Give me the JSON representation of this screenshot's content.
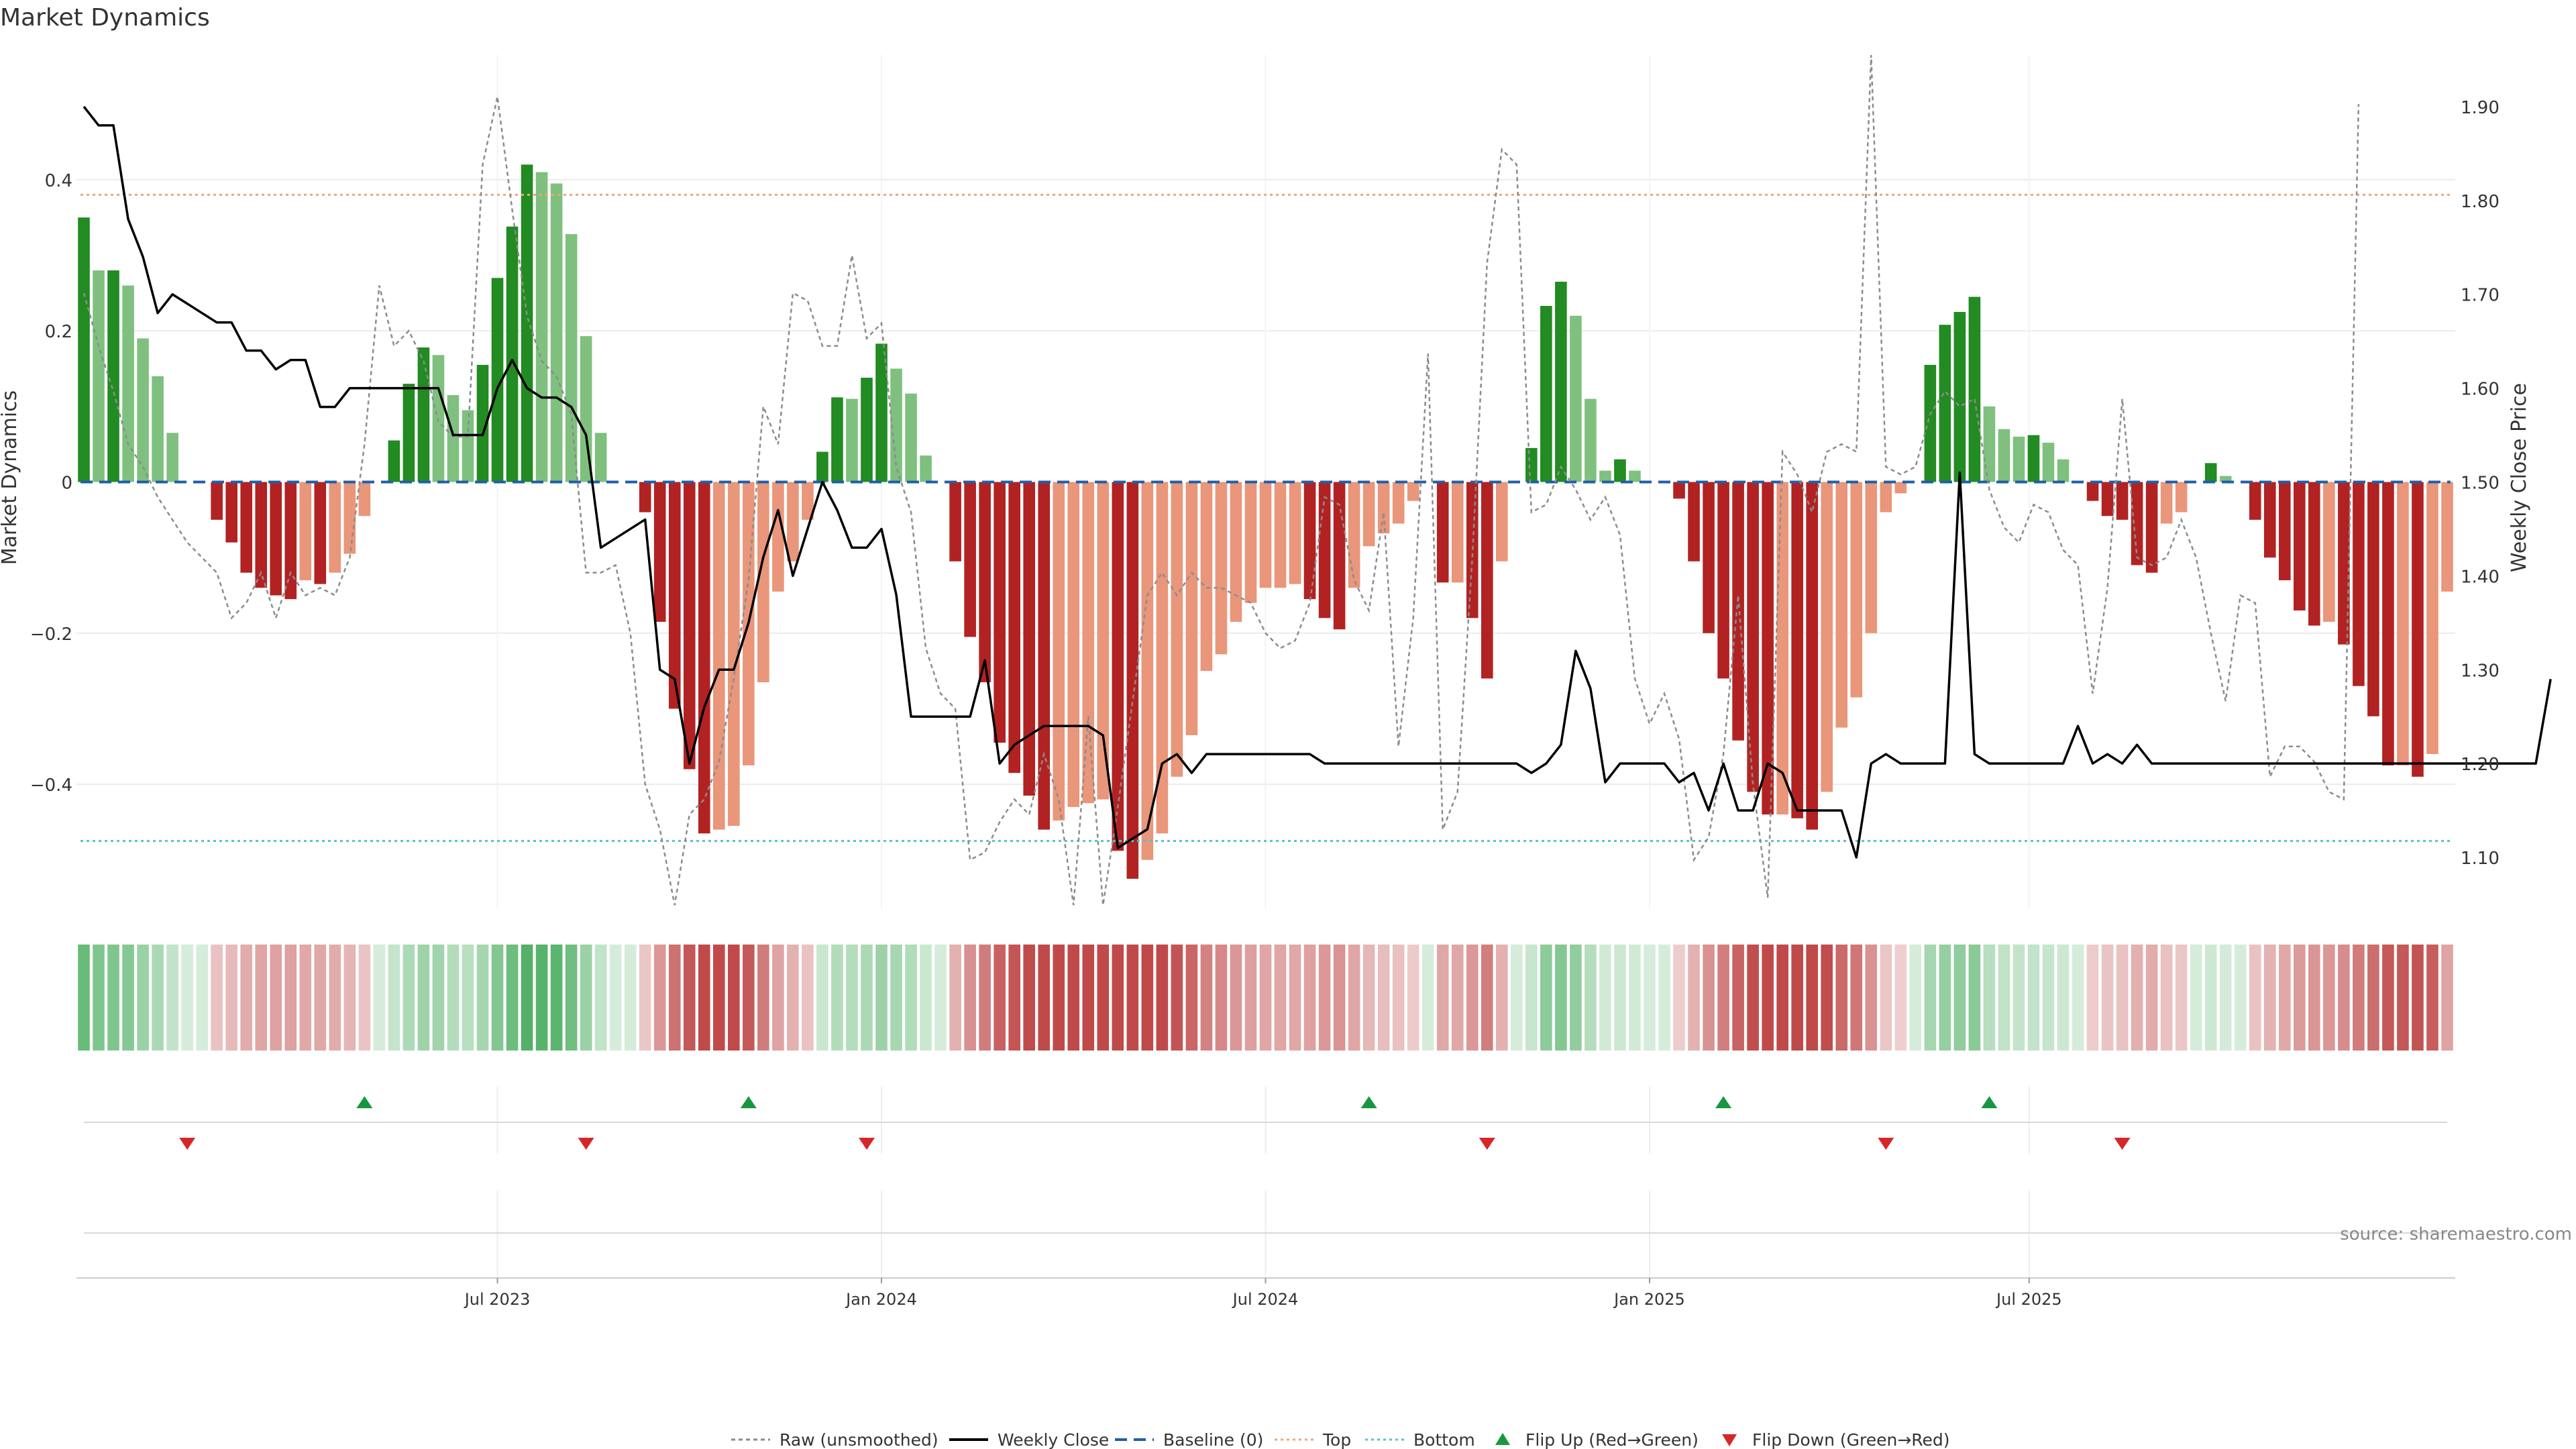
{
  "chart_data": {
    "type": "bar",
    "title": "Market Dynamics",
    "ylabel_left": "Market Dynamics",
    "ylabel_right": "Weekly Close Price",
    "ylim_left": [
      -0.565,
      0.565
    ],
    "ylim_right": [
      1.045,
      1.955
    ],
    "yticks_left": [
      {
        "v": 0.4,
        "label": "0.4"
      },
      {
        "v": 0.2,
        "label": "0.2"
      },
      {
        "v": 0,
        "label": "0"
      },
      {
        "v": -0.2,
        "label": "−0.2"
      },
      {
        "v": -0.4,
        "label": "−0.4"
      }
    ],
    "yticks_right": [
      {
        "v": 1.9,
        "label": "1.90"
      },
      {
        "v": 1.8,
        "label": "1.80"
      },
      {
        "v": 1.7,
        "label": "1.70"
      },
      {
        "v": 1.6,
        "label": "1.60"
      },
      {
        "v": 1.5,
        "label": "1.50"
      },
      {
        "v": 1.4,
        "label": "1.40"
      },
      {
        "v": 1.3,
        "label": "1.30"
      },
      {
        "v": 1.2,
        "label": "1.20"
      },
      {
        "v": 1.1,
        "label": "1.10"
      }
    ],
    "x_ticks": [
      {
        "label": "Jul 2023",
        "week": 28
      },
      {
        "label": "Jan 2024",
        "week": 54
      },
      {
        "label": "Jul 2024",
        "week": 80
      },
      {
        "label": "Jan 2025",
        "week": 106
      },
      {
        "label": "Jul 2025",
        "week": 131.7
      }
    ],
    "grid": true,
    "legend_position": "bottom-center",
    "reference_lines": {
      "top": 0.38,
      "bottom": -0.475,
      "baseline": 0
    },
    "series": [
      {
        "name": "Market Dynamics (smoothed)",
        "values": [
          0.35,
          0.28,
          0.28,
          0.26,
          0.19,
          0.14,
          0.065,
          0,
          0,
          -0.05,
          -0.08,
          -0.12,
          -0.14,
          -0.15,
          -0.155,
          -0.13,
          -0.135,
          -0.12,
          -0.095,
          -0.045,
          0,
          0.055,
          0.13,
          0.178,
          0.168,
          0.115,
          0.095,
          0.155,
          0.27,
          0.338,
          0.42,
          0.41,
          0.395,
          0.328,
          0.193,
          0.065,
          0,
          0,
          -0.04,
          -0.185,
          -0.3,
          -0.38,
          -0.465,
          -0.46,
          -0.455,
          -0.375,
          -0.265,
          -0.145,
          -0.105,
          -0.05,
          0.04,
          0.112,
          0.11,
          0.138,
          0.183,
          0.15,
          0.117,
          0.035,
          0,
          -0.105,
          -0.205,
          -0.265,
          -0.345,
          -0.385,
          -0.415,
          -0.46,
          -0.448,
          -0.43,
          -0.425,
          -0.42,
          -0.488,
          -0.525,
          -0.5,
          -0.465,
          -0.39,
          -0.335,
          -0.25,
          -0.228,
          -0.185,
          -0.16,
          -0.14,
          -0.14,
          -0.135,
          -0.155,
          -0.18,
          -0.195,
          -0.14,
          -0.085,
          -0.068,
          -0.055,
          -0.025,
          0,
          -0.133,
          -0.133,
          -0.18,
          -0.26,
          -0.105,
          0,
          0.045,
          0.233,
          0.265,
          0.22,
          0.11,
          0.015,
          0.03,
          0.015,
          0,
          0,
          -0.022,
          -0.105,
          -0.2,
          -0.26,
          -0.342,
          -0.41,
          -0.44,
          -0.44,
          -0.445,
          -0.46,
          -0.41,
          -0.325,
          -0.285,
          -0.2,
          -0.04,
          -0.015,
          0,
          0.155,
          0.208,
          0.225,
          0.245,
          0.1,
          0.07,
          0.06,
          0.062,
          0.052,
          0.03,
          0,
          -0.025,
          -0.045,
          -0.05,
          -0.11,
          -0.12,
          -0.055,
          -0.04,
          0,
          0.025,
          0.008,
          0,
          -0.05,
          -0.1,
          -0.13,
          -0.17,
          -0.19,
          -0.185,
          -0.215,
          -0.27,
          -0.31,
          -0.375,
          -0.375,
          -0.39,
          -0.36,
          -0.145
        ]
      },
      {
        "name": "Raw (unsmoothed)",
        "values": [
          0.25,
          0.18,
          0.12,
          0.05,
          0.02,
          -0.02,
          -0.05,
          -0.08,
          -0.1,
          -0.12,
          -0.18,
          -0.16,
          -0.12,
          -0.18,
          -0.12,
          -0.15,
          -0.14,
          -0.15,
          -0.1,
          0.05,
          0.26,
          0.18,
          0.2,
          0.16,
          0.08,
          0.06,
          0.06,
          0.42,
          0.51,
          0.36,
          0.22,
          0.16,
          0.14,
          0.09,
          -0.12,
          -0.12,
          -0.11,
          -0.2,
          -0.4,
          -0.46,
          -0.56,
          -0.44,
          -0.42,
          -0.37,
          -0.26,
          -0.13,
          0.1,
          0.05,
          0.25,
          0.24,
          0.18,
          0.18,
          0.3,
          0.19,
          0.21,
          0.02,
          -0.04,
          -0.22,
          -0.28,
          -0.3,
          -0.5,
          -0.49,
          -0.45,
          -0.42,
          -0.44,
          -0.36,
          -0.42,
          -0.56,
          -0.31,
          -0.56,
          -0.43,
          -0.29,
          -0.15,
          -0.12,
          -0.15,
          -0.12,
          -0.14,
          -0.14,
          -0.15,
          -0.16,
          -0.2,
          -0.22,
          -0.21,
          -0.16,
          -0.02,
          -0.03,
          -0.13,
          -0.17,
          -0.04,
          -0.35,
          -0.18,
          0.17,
          -0.46,
          -0.41,
          -0.1,
          0.29,
          0.44,
          0.42,
          -0.04,
          -0.03,
          0.02,
          -0.01,
          -0.05,
          -0.02,
          -0.07,
          -0.26,
          -0.32,
          -0.28,
          -0.34,
          -0.5,
          -0.47,
          -0.36,
          -0.15,
          -0.4,
          -0.55,
          0.04,
          0.01,
          -0.04,
          0.04,
          0.05,
          0.04,
          0.57,
          0.02,
          0.01,
          0.02,
          0.09,
          0.12,
          0.1,
          0.11,
          -0.01,
          -0.06,
          -0.08,
          -0.03,
          -0.04,
          -0.09,
          -0.11,
          -0.28,
          -0.14,
          0.11,
          -0.1,
          -0.11,
          -0.1,
          -0.05,
          -0.1,
          -0.2,
          -0.29,
          -0.15,
          -0.16,
          -0.39,
          -0.35,
          -0.35,
          -0.37,
          -0.41,
          -0.42,
          0.5
        ]
      },
      {
        "name": "Weekly Close",
        "axis": "right",
        "values": [
          1.9,
          1.88,
          1.88,
          1.78,
          1.74,
          1.68,
          1.7,
          1.69,
          1.68,
          1.67,
          1.67,
          1.64,
          1.64,
          1.62,
          1.63,
          1.63,
          1.58,
          1.58,
          1.6,
          1.6,
          1.6,
          1.6,
          1.6,
          1.6,
          1.6,
          1.55,
          1.55,
          1.55,
          1.6,
          1.63,
          1.6,
          1.59,
          1.59,
          1.58,
          1.55,
          1.43,
          1.44,
          1.45,
          1.46,
          1.3,
          1.29,
          1.2,
          1.26,
          1.3,
          1.3,
          1.35,
          1.42,
          1.47,
          1.4,
          1.45,
          1.5,
          1.47,
          1.43,
          1.43,
          1.45,
          1.38,
          1.25,
          1.25,
          1.25,
          1.25,
          1.25,
          1.31,
          1.2,
          1.22,
          1.23,
          1.24,
          1.24,
          1.24,
          1.24,
          1.23,
          1.11,
          1.12,
          1.13,
          1.2,
          1.21,
          1.19,
          1.21,
          1.21,
          1.21,
          1.21,
          1.21,
          1.21,
          1.21,
          1.21,
          1.2,
          1.2,
          1.2,
          1.2,
          1.2,
          1.2,
          1.2,
          1.2,
          1.2,
          1.2,
          1.2,
          1.2,
          1.2,
          1.2,
          1.19,
          1.2,
          1.22,
          1.32,
          1.28,
          1.18,
          1.2,
          1.2,
          1.2,
          1.2,
          1.18,
          1.19,
          1.15,
          1.2,
          1.15,
          1.15,
          1.2,
          1.19,
          1.15,
          1.15,
          1.15,
          1.15,
          1.1,
          1.2,
          1.21,
          1.2,
          1.2,
          1.2,
          1.2,
          1.51,
          1.21,
          1.2,
          1.2,
          1.2,
          1.2,
          1.2,
          1.2,
          1.24,
          1.2,
          1.21,
          1.2,
          1.22,
          1.2,
          1.2,
          1.2,
          1.2,
          1.2,
          1.2,
          1.2,
          1.2,
          1.2,
          1.2,
          1.2,
          1.2,
          1.2,
          1.2,
          1.2,
          1.2,
          1.2,
          1.2,
          1.2,
          1.2,
          1.2,
          1.2,
          1.2,
          1.2,
          1.2,
          1.2,
          1.2,
          1.29
        ]
      },
      {
        "name": "Baseline (0)"
      },
      {
        "name": "Top"
      },
      {
        "name": "Bottom"
      },
      {
        "name": "Flip Up (Red→Green)",
        "weeks": [
          19,
          45,
          87,
          111,
          129
        ]
      },
      {
        "name": "Flip Down (Green→Red)",
        "weeks": [
          7,
          34,
          53,
          95,
          122,
          138
        ]
      }
    ],
    "annotation": "source: sharemaestro.com"
  },
  "colors": {
    "bar_green_strong": "#228b22",
    "bar_green_light": "#7fc07f",
    "bar_red_strong": "#b22222",
    "bar_red_light": "#e9967a",
    "close_line": "#000000",
    "raw_line": "#8c8c8c",
    "baseline": "#1f5fa8",
    "top_line": "#e8a87c",
    "bottom_line": "#5bc0c8",
    "flip_up": "#1a9641",
    "flip_down": "#d62728",
    "grid": "#ebebeb",
    "text": "#333333"
  }
}
